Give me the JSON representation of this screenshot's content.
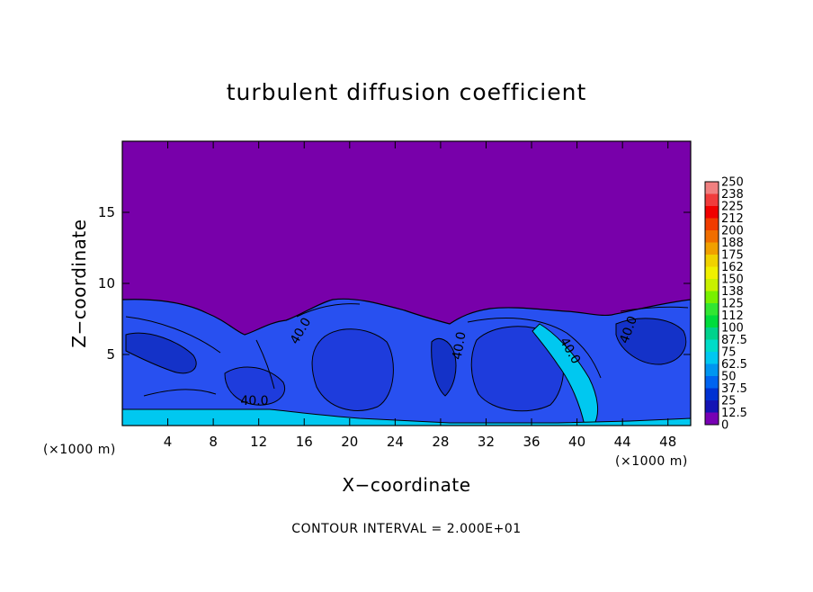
{
  "chart_data": {
    "type": "heatmap",
    "title": "turbulent diffusion coefficient",
    "xlabel": "X−coordinate",
    "ylabel": "Z−coordinate",
    "x_unit": "(×1000 m)",
    "x_unit_right": "(×1000 m)",
    "xlim": [
      0,
      50
    ],
    "ylim": [
      0,
      20
    ],
    "xticks": [
      "4",
      "8",
      "12",
      "16",
      "20",
      "24",
      "28",
      "32",
      "36",
      "40",
      "44",
      "48"
    ],
    "xtick_values": [
      4,
      8,
      12,
      16,
      20,
      24,
      28,
      32,
      36,
      40,
      44,
      48
    ],
    "yticks": [
      "5",
      "10",
      "15"
    ],
    "ytick_values": [
      5,
      10,
      15
    ],
    "grid": false,
    "colorbar": {
      "labels": [
        "250",
        "238",
        "225",
        "212",
        "200",
        "188",
        "175",
        "162",
        "150",
        "138",
        "125",
        "112",
        "100",
        "87.5",
        "75",
        "62.5",
        "50",
        "37.5",
        "25",
        "12.5",
        "0"
      ],
      "colors": [
        "#f08080",
        "#f03c3c",
        "#f00000",
        "#f03c00",
        "#f06e00",
        "#f0a000",
        "#f0d200",
        "#f0f000",
        "#c8f000",
        "#78f000",
        "#32e632",
        "#00dc3c",
        "#00d28c",
        "#00dcc8",
        "#00c8f0",
        "#0096f0",
        "#0064f0",
        "#0032d2",
        "#1414b4",
        "#7800b4"
      ],
      "position": "right"
    },
    "background_value": 0,
    "background_color": "#7800aa",
    "field_colors": [
      "#1e3cdc",
      "#2850f0",
      "#1432c8",
      "#00c8f0"
    ],
    "contour_labels": [
      "40.0",
      "40.0",
      "40.0",
      "40.0",
      "40.0"
    ],
    "contour_interval": 20,
    "footer": "CONTOUR INTERVAL = 2.000E+01"
  }
}
